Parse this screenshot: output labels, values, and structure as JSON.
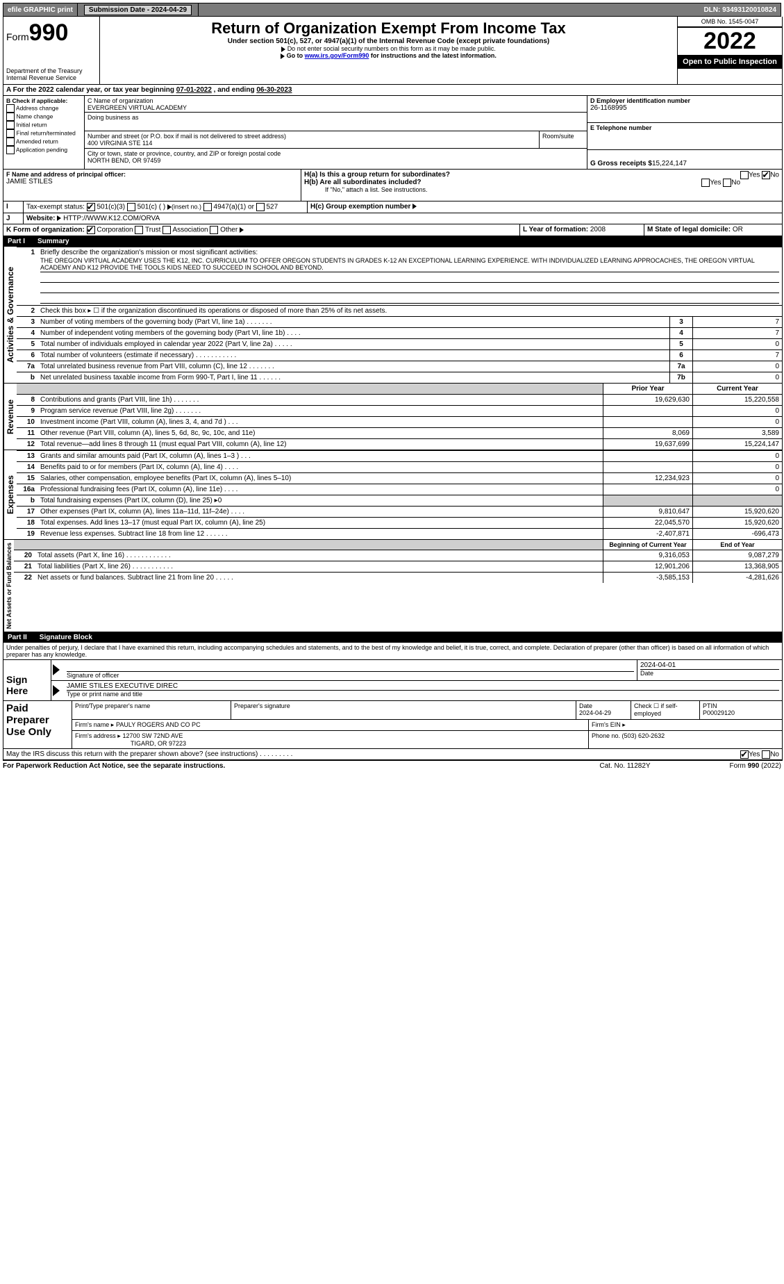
{
  "topbar": {
    "efile": "efile GRAPHIC print",
    "submission_label": "Submission Date - ",
    "submission_date": "2024-04-29",
    "dln_label": "DLN: ",
    "dln": "93493120010824"
  },
  "header": {
    "form_prefix": "Form",
    "form_no": "990",
    "title": "Return of Organization Exempt From Income Tax",
    "subtitle": "Under section 501(c), 527, or 4947(a)(1) of the Internal Revenue Code (except private foundations)",
    "note1": "Do not enter social security numbers on this form as it may be made public.",
    "note2_pre": "Go to ",
    "note2_link": "www.irs.gov/Form990",
    "note2_post": " for instructions and the latest information.",
    "dept": "Department of the Treasury",
    "irs": "Internal Revenue Service",
    "omb": "OMB No. 1545-0047",
    "year": "2022",
    "open": "Open to Public Inspection"
  },
  "a_line": {
    "text_a": "For the 2022 calendar year, or tax year beginning ",
    "begin": "07-01-2022",
    "mid": " , and ending ",
    "end": "06-30-2023"
  },
  "b": {
    "label": "B Check if applicable:",
    "items": [
      "Address change",
      "Name change",
      "Initial return",
      "Final return/terminated",
      "Amended return",
      "Application pending"
    ]
  },
  "c": {
    "name_label": "C Name of organization",
    "name": "EVERGREEN VIRTUAL ACADEMY",
    "dba_label": "Doing business as",
    "street_label": "Number and street (or P.O. box if mail is not delivered to street address)",
    "room_label": "Room/suite",
    "street": "400 VIRGINIA STE 114",
    "city_label": "City or town, state or province, country, and ZIP or foreign postal code",
    "city": "NORTH BEND, OR  97459"
  },
  "d": {
    "label": "D Employer identification number",
    "val": "26-1168995"
  },
  "e": {
    "label": "E Telephone number",
    "val": ""
  },
  "g": {
    "label": "G Gross receipts $",
    "val": "15,224,147"
  },
  "f": {
    "label": "F Name and address of principal officer:",
    "name": "JAMIE STILES"
  },
  "h": {
    "a": "H(a)  Is this a group return for subordinates?",
    "b": "H(b)  Are all subordinates included?",
    "b_note": "If \"No,\" attach a list. See instructions.",
    "c": "H(c)  Group exemption number",
    "yes": "Yes",
    "no": "No"
  },
  "i": {
    "label": "Tax-exempt status:",
    "o1": "501(c)(3)",
    "o2": "501(c) (   )",
    "o2b": "(insert no.)",
    "o3": "4947(a)(1) or",
    "o4": "527"
  },
  "j": {
    "label": "Website:",
    "val": "HTTP://WWW.K12.COM/ORVA"
  },
  "k": {
    "label": "K Form of organization:",
    "o1": "Corporation",
    "o2": "Trust",
    "o3": "Association",
    "o4": "Other"
  },
  "l": {
    "label": "L Year of formation: ",
    "val": "2008"
  },
  "m": {
    "label": "M State of legal domicile: ",
    "val": "OR"
  },
  "part1": {
    "hdr": "Part I",
    "title": "Summary",
    "l1_label": "Briefly describe the organization's mission or most significant activities:",
    "l1_text": "THE OREGON VIRTUAL ACADEMY USES THE K12, INC. CURRICULUM TO OFFER OREGON STUDENTS IN GRADES K-12 AN EXCEPTIONAL LEARNING EXPERIENCE. WITH INDIVIDUALIZED LEARNING APPROCACHES, THE OREGON VIRTUAL ACADEMY AND K12 PROVIDE THE TOOLS KIDS NEED TO SUCCEED IN SCHOOL AND BEYOND.",
    "l2": "Check this box ▸ ☐  if the organization discontinued its operations or disposed of more than 25% of its net assets.",
    "side_ag": "Activities & Governance",
    "side_rev": "Revenue",
    "side_exp": "Expenses",
    "side_na": "Net Assets or Fund Balances",
    "prior": "Prior Year",
    "current": "Current Year",
    "boy": "Beginning of Current Year",
    "eoy": "End of Year",
    "lines_ag": [
      {
        "n": "3",
        "t": "Number of voting members of the governing body (Part VI, line 1a)   .    .    .    .    .    .    .",
        "box": "3",
        "v": "7"
      },
      {
        "n": "4",
        "t": "Number of independent voting members of the governing body (Part VI, line 1b)   .    .    .    .",
        "box": "4",
        "v": "7"
      },
      {
        "n": "5",
        "t": "Total number of individuals employed in calendar year 2022 (Part V, line 2a)   .    .    .    .    .",
        "box": "5",
        "v": "0"
      },
      {
        "n": "6",
        "t": "Total number of volunteers (estimate if necessary)    .    .    .    .    .    .    .    .    .    .    .",
        "box": "6",
        "v": "7"
      },
      {
        "n": "7a",
        "t": "Total unrelated business revenue from Part VIII, column (C), line 12   .    .    .    .    .    .    .",
        "box": "7a",
        "v": "0"
      },
      {
        "n": "b",
        "t": "Net unrelated business taxable income from Form 990-T, Part I, line 11   .    .    .    .    .    .",
        "box": "7b",
        "v": "0"
      }
    ],
    "lines_rev": [
      {
        "n": "8",
        "t": "Contributions and grants (Part VIII, line 1h)   .    .    .    .    .    .    .",
        "p": "19,629,630",
        "c": "15,220,558"
      },
      {
        "n": "9",
        "t": "Program service revenue (Part VIII, line 2g)   .    .    .    .    .    .    .",
        "p": "",
        "c": "0"
      },
      {
        "n": "10",
        "t": "Investment income (Part VIII, column (A), lines 3, 4, and 7d )   .    .    .",
        "p": "",
        "c": "0"
      },
      {
        "n": "11",
        "t": "Other revenue (Part VIII, column (A), lines 5, 6d, 8c, 9c, 10c, and 11e)",
        "p": "8,069",
        "c": "3,589"
      },
      {
        "n": "12",
        "t": "Total revenue—add lines 8 through 11 (must equal Part VIII, column (A), line 12)",
        "p": "19,637,699",
        "c": "15,224,147"
      }
    ],
    "lines_exp": [
      {
        "n": "13",
        "t": "Grants and similar amounts paid (Part IX, column (A), lines 1–3 )   .    .    .",
        "p": "",
        "c": "0"
      },
      {
        "n": "14",
        "t": "Benefits paid to or for members (Part IX, column (A), line 4)   .    .    .    .",
        "p": "",
        "c": "0"
      },
      {
        "n": "15",
        "t": "Salaries, other compensation, employee benefits (Part IX, column (A), lines 5–10)",
        "p": "12,234,923",
        "c": "0"
      },
      {
        "n": "16a",
        "t": "Professional fundraising fees (Part IX, column (A), line 11e)   .    .    .    .",
        "p": "",
        "c": "0"
      },
      {
        "n": "b",
        "t": "Total fundraising expenses (Part IX, column (D), line 25) ▸0",
        "p": "shade",
        "c": "shade"
      },
      {
        "n": "17",
        "t": "Other expenses (Part IX, column (A), lines 11a–11d, 11f–24e)   .    .    .    .",
        "p": "9,810,647",
        "c": "15,920,620"
      },
      {
        "n": "18",
        "t": "Total expenses. Add lines 13–17 (must equal Part IX, column (A), line 25)",
        "p": "22,045,570",
        "c": "15,920,620"
      },
      {
        "n": "19",
        "t": "Revenue less expenses. Subtract line 18 from line 12   .    .    .    .    .    .",
        "p": "-2,407,871",
        "c": "-696,473"
      }
    ],
    "lines_na": [
      {
        "n": "20",
        "t": "Total assets (Part X, line 16)   .    .    .    .    .    .    .    .    .    .    .    .",
        "p": "9,316,053",
        "c": "9,087,279"
      },
      {
        "n": "21",
        "t": "Total liabilities (Part X, line 26)   .    .    .    .    .    .    .    .    .    .    .",
        "p": "12,901,206",
        "c": "13,368,905"
      },
      {
        "n": "22",
        "t": "Net assets or fund balances. Subtract line 21 from line 20   .    .    .    .    .",
        "p": "-3,585,153",
        "c": "-4,281,626"
      }
    ]
  },
  "part2": {
    "hdr": "Part II",
    "title": "Signature Block",
    "penalty": "Under penalties of perjury, I declare that I have examined this return, including accompanying schedules and statements, and to the best of my knowledge and belief, it is true, correct, and complete. Declaration of preparer (other than officer) is based on all information of which preparer has any knowledge.",
    "sign_here": "Sign Here",
    "sig_off": "Signature of officer",
    "date": "Date",
    "sig_date": "2024-04-01",
    "name_title": "JAMIE STILES  EXECUTIVE DIREC",
    "type_name": "Type or print name and title",
    "paid": "Paid Preparer Use Only",
    "pp_name_l": "Print/Type preparer's name",
    "pp_sig_l": "Preparer's signature",
    "pp_date_l": "Date",
    "pp_date": "2024-04-29",
    "pp_check": "Check ☐ if self-employed",
    "ptin_l": "PTIN",
    "ptin": "P00029120",
    "firm_name_l": "Firm's name    ▸",
    "firm_name": "PAULY ROGERS AND CO PC",
    "firm_ein_l": "Firm's EIN ▸",
    "firm_addr_l": "Firm's address ▸",
    "firm_addr1": "12700 SW 72ND AVE",
    "firm_addr2": "TIGARD, OR  97223",
    "phone_l": "Phone no. ",
    "phone": "(503) 620-2632",
    "may_irs": "May the IRS discuss this return with the preparer shown above? (see instructions)   .    .    .    .    .    .    .    .    .",
    "yes": "Yes",
    "no": "No"
  },
  "footer": {
    "pra": "For Paperwork Reduction Act Notice, see the separate instructions.",
    "cat": "Cat. No. 11282Y",
    "form": "Form 990 (2022)"
  }
}
